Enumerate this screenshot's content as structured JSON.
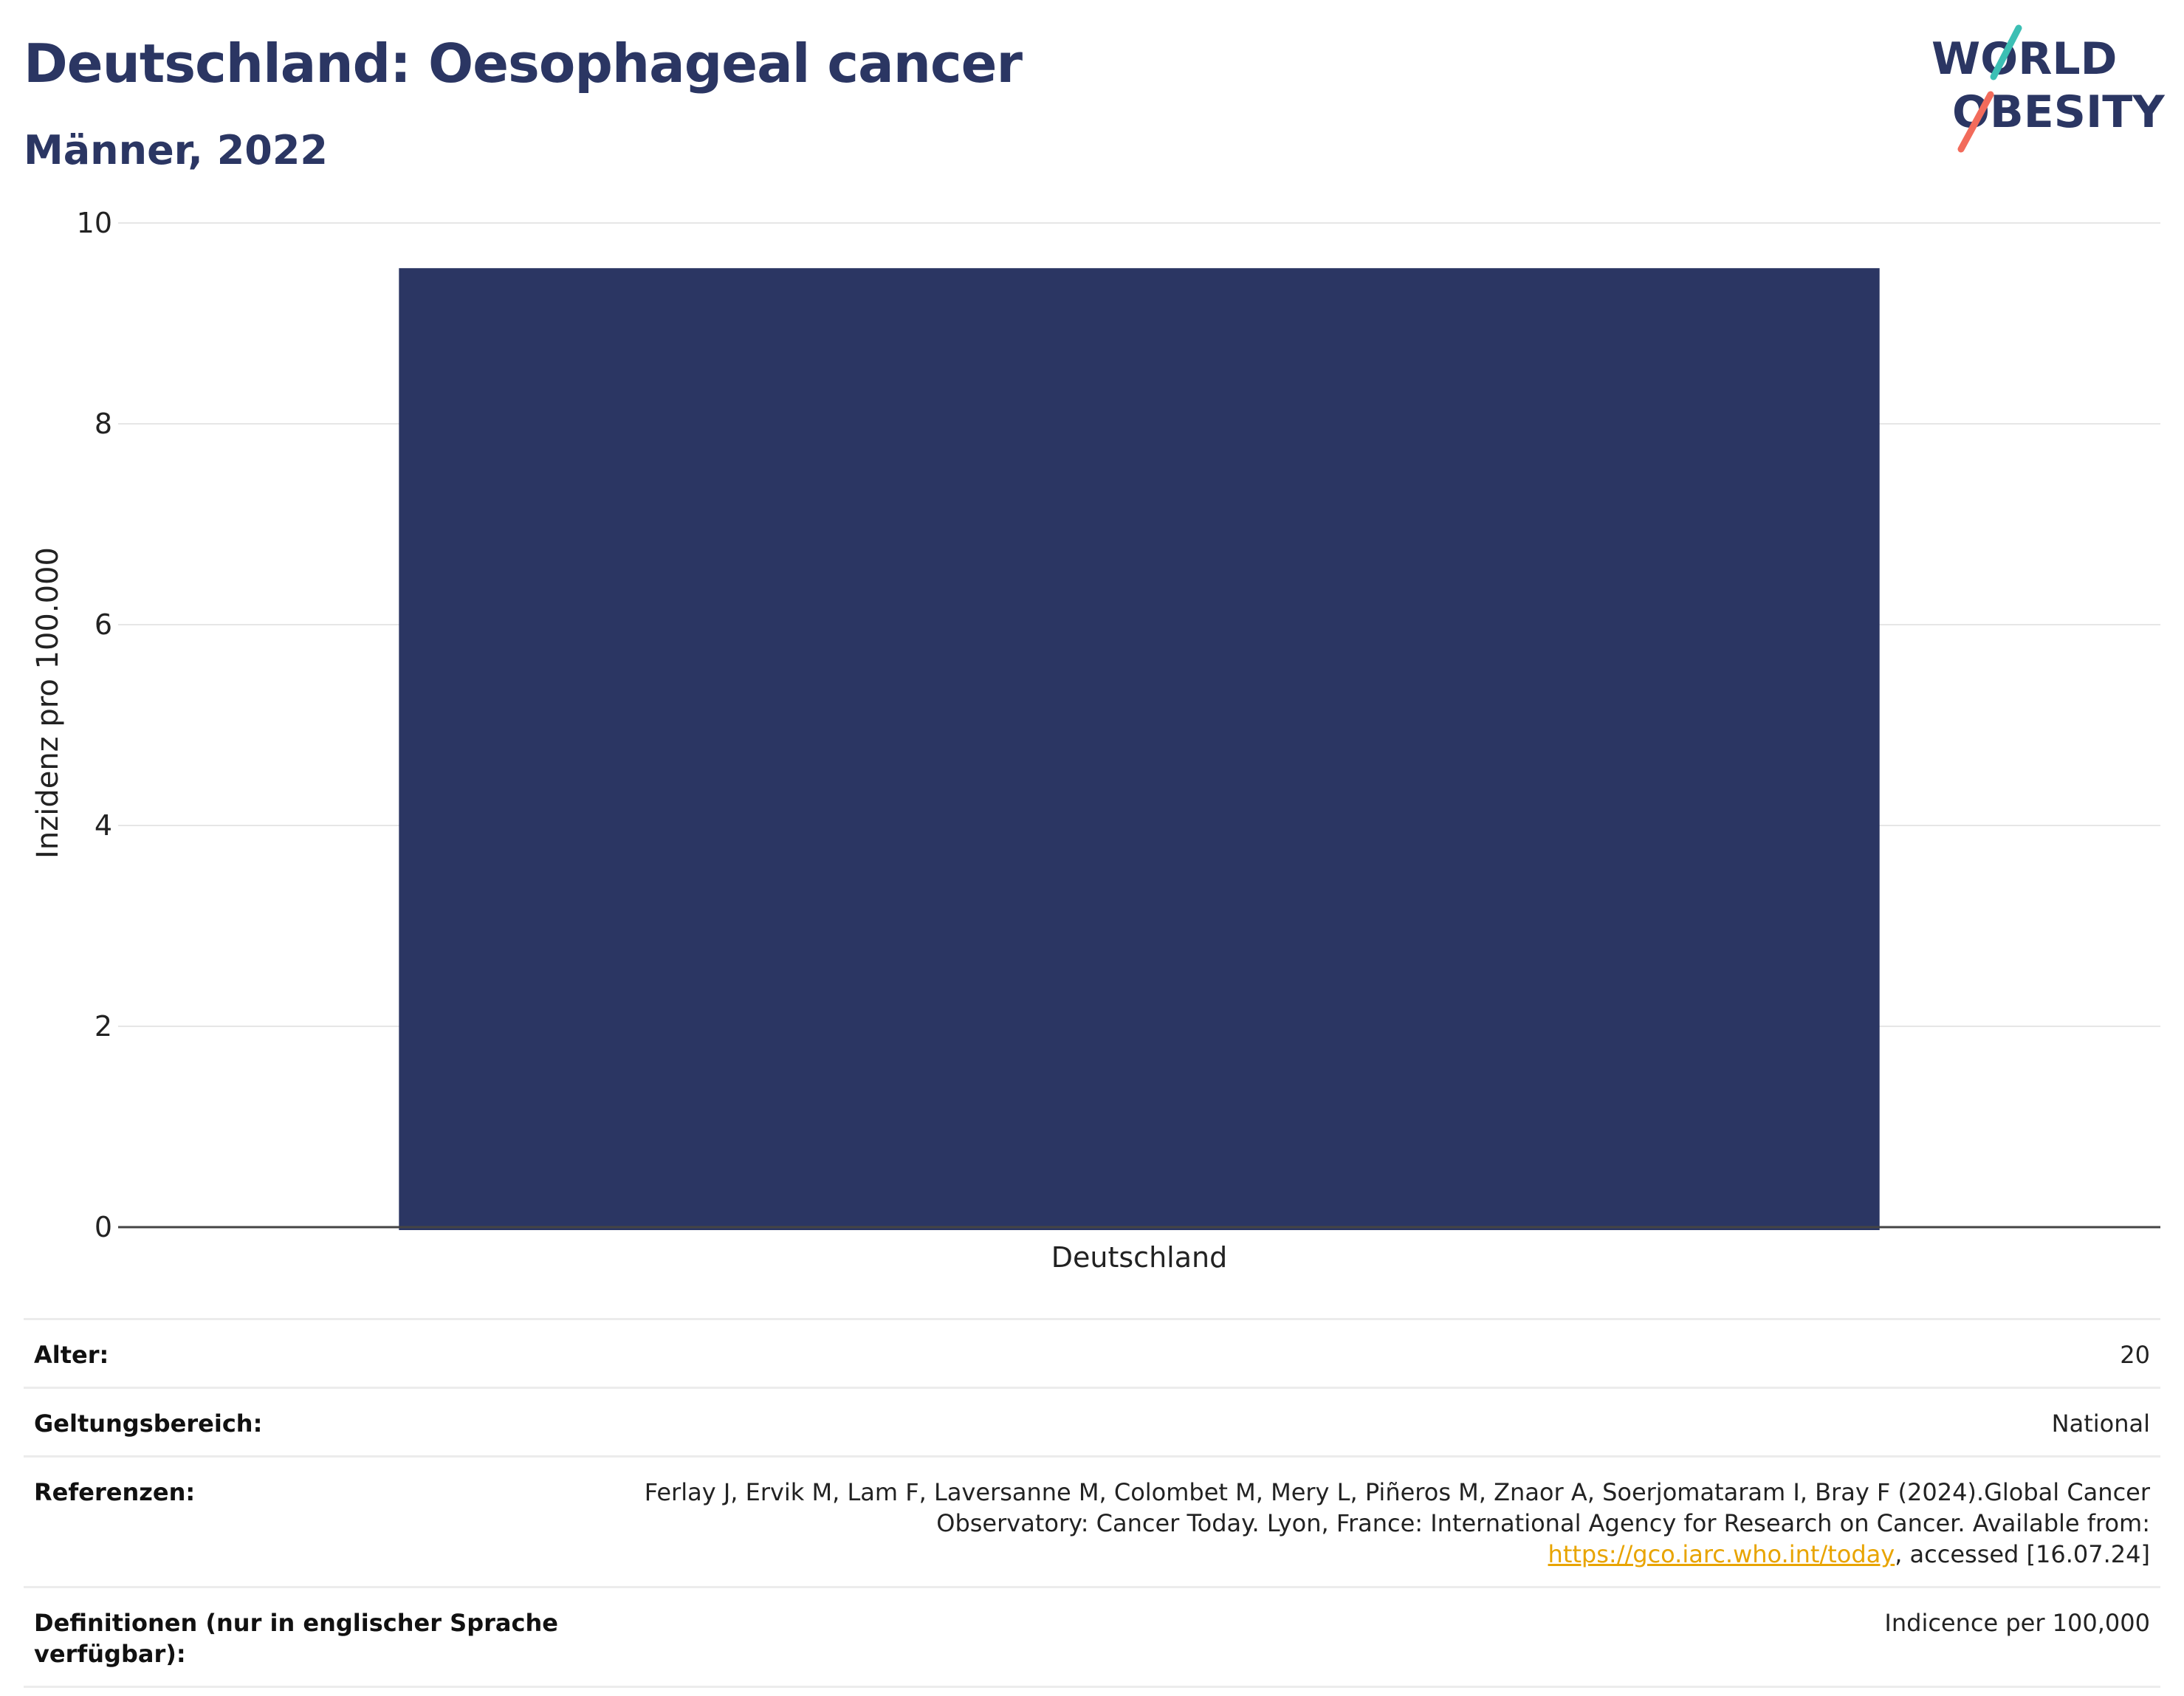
{
  "header": {
    "title": "Deutschland: Oesophageal cancer",
    "subtitle": "Männer, 2022"
  },
  "logo": {
    "line1": "WORLD",
    "line2": "OBESITY"
  },
  "chart_data": {
    "type": "bar",
    "categories": [
      "Deutschland"
    ],
    "values": [
      9.55
    ],
    "ylabel": "Inzidenz pro 100.000",
    "xlabel": "",
    "ylim": [
      0,
      10
    ],
    "yticks": [
      0,
      2,
      4,
      6,
      8,
      10
    ],
    "grid": true,
    "bar_color": "#2b3663"
  },
  "info": {
    "age_label": "Alter:",
    "age_value": "20",
    "scope_label": "Geltungsbereich:",
    "scope_value": "National",
    "ref_label": "Referenzen:",
    "ref_text_before": "Ferlay J, Ervik M, Lam F, Laversanne M, Colombet M, Mery L, Piñeros M, Znaor A, Soerjomataram I, Bray F (2024).Global Cancer Observatory: Cancer Today. Lyon, France: International Agency for Research on Cancer. Available from: ",
    "ref_link": "https://gco.iarc.who.int/today",
    "ref_text_after": ", accessed [16.07.24]",
    "def_label": "Definitionen (nur in englischer Sprache verfügbar):",
    "def_value": "Indicence per 100,000"
  },
  "colors": {
    "title": "#2b3663",
    "bar": "#2b3663",
    "logo_teal": "#3cbfb4",
    "logo_coral": "#f26b5b",
    "link": "#e8a400"
  }
}
